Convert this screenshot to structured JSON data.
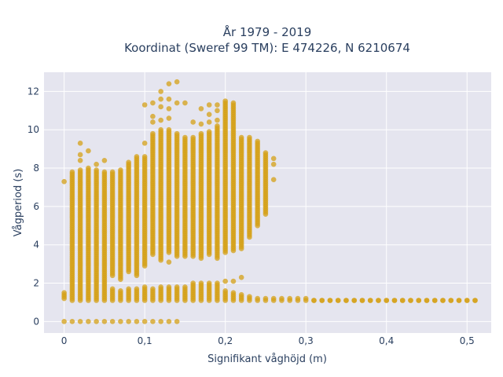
{
  "chart_data": {
    "type": "scatter",
    "title_lines": [
      "År 1979 - 2019",
      "Koordinat (Sweref 99 TM): E 474226, N 6210674"
    ],
    "xlabel": "Signifikant våghöjd (m)",
    "ylabel": "Vågperiod (s)",
    "xlim": [
      -0.025,
      0.53
    ],
    "ylim": [
      -0.6,
      13.0
    ],
    "x_ticks": [
      0,
      0.1,
      0.2,
      0.3,
      0.4,
      0.5
    ],
    "x_tick_labels": [
      "0",
      "0,1",
      "0,2",
      "0,3",
      "0,4",
      "0,5"
    ],
    "y_ticks": [
      0,
      2,
      4,
      6,
      8,
      10,
      12
    ],
    "y_tick_labels": [
      "0",
      "2",
      "4",
      "6",
      "8",
      "10",
      "12"
    ],
    "grid": true,
    "colors": {
      "marker": "#d4a017",
      "plot_bg": "#e5e5ef",
      "grid": "#ffffff",
      "text": "#2a3f5f"
    },
    "series": [
      {
        "columns": [
          {
            "x": 0.0,
            "segments": [
              [
                1.2,
                1.5
              ]
            ],
            "extra": [
              0.0,
              7.3
            ]
          },
          {
            "x": 0.01,
            "segments": [
              [
                1.1,
                7.8
              ]
            ],
            "extra": [
              0.0
            ]
          },
          {
            "x": 0.02,
            "segments": [
              [
                1.1,
                7.9
              ]
            ],
            "extra": [
              0.0,
              8.4,
              8.7,
              9.3
            ]
          },
          {
            "x": 0.03,
            "segments": [
              [
                1.1,
                8.0
              ]
            ],
            "extra": [
              0.0,
              8.9
            ]
          },
          {
            "x": 0.04,
            "segments": [
              [
                1.1,
                7.9
              ]
            ],
            "extra": [
              0.0,
              8.2
            ]
          },
          {
            "x": 0.05,
            "segments": [
              [
                1.1,
                7.8
              ]
            ],
            "extra": [
              0.0,
              8.4
            ]
          },
          {
            "x": 0.06,
            "segments": [
              [
                1.1,
                1.7
              ],
              [
                2.4,
                7.8
              ]
            ],
            "extra": [
              0.0
            ]
          },
          {
            "x": 0.07,
            "segments": [
              [
                1.1,
                1.6
              ],
              [
                2.2,
                7.9
              ]
            ],
            "extra": [
              0.0
            ]
          },
          {
            "x": 0.08,
            "segments": [
              [
                1.1,
                1.7
              ],
              [
                2.6,
                8.3
              ]
            ],
            "extra": [
              0.0
            ]
          },
          {
            "x": 0.09,
            "segments": [
              [
                1.1,
                1.7
              ],
              [
                2.4,
                8.6
              ]
            ],
            "extra": [
              0.0
            ]
          },
          {
            "x": 0.1,
            "segments": [
              [
                1.1,
                1.8
              ],
              [
                2.9,
                8.6
              ]
            ],
            "extra": [
              0.0,
              9.3,
              11.3
            ]
          },
          {
            "x": 0.11,
            "segments": [
              [
                1.1,
                1.7
              ],
              [
                3.5,
                9.8
              ]
            ],
            "extra": [
              0.0,
              10.4,
              10.7,
              11.4
            ]
          },
          {
            "x": 0.12,
            "segments": [
              [
                1.1,
                1.8
              ],
              [
                3.2,
                10.0
              ]
            ],
            "extra": [
              0.0,
              10.5,
              11.2,
              11.6,
              12.0
            ]
          },
          {
            "x": 0.13,
            "segments": [
              [
                1.1,
                1.8
              ],
              [
                3.6,
                10.0
              ]
            ],
            "extra": [
              0.0,
              3.1,
              10.6,
              11.1,
              11.6,
              12.4
            ]
          },
          {
            "x": 0.14,
            "segments": [
              [
                1.1,
                1.8
              ],
              [
                3.4,
                9.8
              ]
            ],
            "extra": [
              0.0,
              11.4,
              12.5
            ]
          },
          {
            "x": 0.15,
            "segments": [
              [
                1.1,
                1.8
              ],
              [
                3.4,
                9.6
              ]
            ],
            "extra": [
              11.4
            ]
          },
          {
            "x": 0.16,
            "segments": [
              [
                1.1,
                2.0
              ],
              [
                3.4,
                9.6
              ]
            ],
            "extra": [
              10.4
            ]
          },
          {
            "x": 0.17,
            "segments": [
              [
                1.1,
                2.0
              ],
              [
                3.3,
                9.8
              ]
            ],
            "extra": [
              10.3,
              11.1
            ]
          },
          {
            "x": 0.18,
            "segments": [
              [
                1.1,
                2.0
              ],
              [
                3.5,
                9.9
              ]
            ],
            "extra": [
              10.4,
              10.8,
              11.3
            ]
          },
          {
            "x": 0.19,
            "segments": [
              [
                1.1,
                2.0
              ],
              [
                3.3,
                10.2
              ]
            ],
            "extra": [
              10.5,
              11.0,
              11.3
            ]
          },
          {
            "x": 0.2,
            "segments": [
              [
                1.1,
                1.6
              ],
              [
                3.6,
                11.5
              ]
            ],
            "extra": [
              2.1
            ]
          },
          {
            "x": 0.21,
            "segments": [
              [
                1.1,
                1.5
              ],
              [
                3.7,
                11.4
              ]
            ],
            "extra": [
              2.1
            ]
          },
          {
            "x": 0.22,
            "segments": [
              [
                1.1,
                1.4
              ],
              [
                3.8,
                9.6
              ]
            ],
            "extra": [
              2.3
            ]
          },
          {
            "x": 0.23,
            "segments": [
              [
                1.1,
                1.3
              ],
              [
                4.4,
                9.6
              ]
            ],
            "extra": []
          },
          {
            "x": 0.24,
            "segments": [
              [
                1.1,
                1.2
              ],
              [
                5.0,
                9.4
              ]
            ],
            "extra": []
          },
          {
            "x": 0.25,
            "segments": [
              [
                1.1,
                1.2
              ],
              [
                5.6,
                8.8
              ]
            ],
            "extra": []
          },
          {
            "x": 0.26,
            "segments": [
              [
                1.1,
                1.2
              ]
            ],
            "extra": [
              7.4,
              8.2,
              8.5
            ]
          },
          {
            "x": 0.27,
            "segments": [
              [
                1.1,
                1.2
              ]
            ],
            "extra": []
          },
          {
            "x": 0.28,
            "segments": [
              [
                1.1,
                1.2
              ]
            ],
            "extra": []
          },
          {
            "x": 0.29,
            "segments": [
              [
                1.1,
                1.2
              ]
            ],
            "extra": []
          },
          {
            "x": 0.3,
            "segments": [
              [
                1.1,
                1.2
              ]
            ],
            "extra": []
          },
          {
            "x": 0.31,
            "segments": [
              [
                1.1,
                1.1
              ]
            ],
            "extra": []
          },
          {
            "x": 0.32,
            "segments": [
              [
                1.1,
                1.1
              ]
            ],
            "extra": []
          },
          {
            "x": 0.33,
            "segments": [
              [
                1.1,
                1.1
              ]
            ],
            "extra": []
          },
          {
            "x": 0.34,
            "segments": [
              [
                1.1,
                1.1
              ]
            ],
            "extra": []
          },
          {
            "x": 0.35,
            "segments": [
              [
                1.1,
                1.1
              ]
            ],
            "extra": []
          },
          {
            "x": 0.36,
            "segments": [
              [
                1.1,
                1.1
              ]
            ],
            "extra": []
          },
          {
            "x": 0.37,
            "segments": [
              [
                1.1,
                1.1
              ]
            ],
            "extra": []
          },
          {
            "x": 0.38,
            "segments": [
              [
                1.1,
                1.1
              ]
            ],
            "extra": []
          },
          {
            "x": 0.39,
            "segments": [
              [
                1.1,
                1.1
              ]
            ],
            "extra": []
          },
          {
            "x": 0.4,
            "segments": [
              [
                1.1,
                1.1
              ]
            ],
            "extra": []
          },
          {
            "x": 0.41,
            "segments": [
              [
                1.1,
                1.1
              ]
            ],
            "extra": []
          },
          {
            "x": 0.42,
            "segments": [
              [
                1.1,
                1.1
              ]
            ],
            "extra": []
          },
          {
            "x": 0.43,
            "segments": [
              [
                1.1,
                1.1
              ]
            ],
            "extra": []
          },
          {
            "x": 0.44,
            "segments": [
              [
                1.1,
                1.1
              ]
            ],
            "extra": []
          },
          {
            "x": 0.45,
            "segments": [
              [
                1.1,
                1.1
              ]
            ],
            "extra": []
          },
          {
            "x": 0.46,
            "segments": [
              [
                1.1,
                1.1
              ]
            ],
            "extra": []
          },
          {
            "x": 0.47,
            "segments": [
              [
                1.1,
                1.1
              ]
            ],
            "extra": []
          },
          {
            "x": 0.48,
            "segments": [
              [
                1.1,
                1.1
              ]
            ],
            "extra": []
          },
          {
            "x": 0.49,
            "segments": [
              [
                1.1,
                1.1
              ]
            ],
            "extra": []
          },
          {
            "x": 0.5,
            "segments": [
              [
                1.1,
                1.1
              ]
            ],
            "extra": []
          },
          {
            "x": 0.51,
            "segments": [
              [
                1.1,
                1.1
              ]
            ],
            "extra": []
          }
        ]
      }
    ]
  }
}
